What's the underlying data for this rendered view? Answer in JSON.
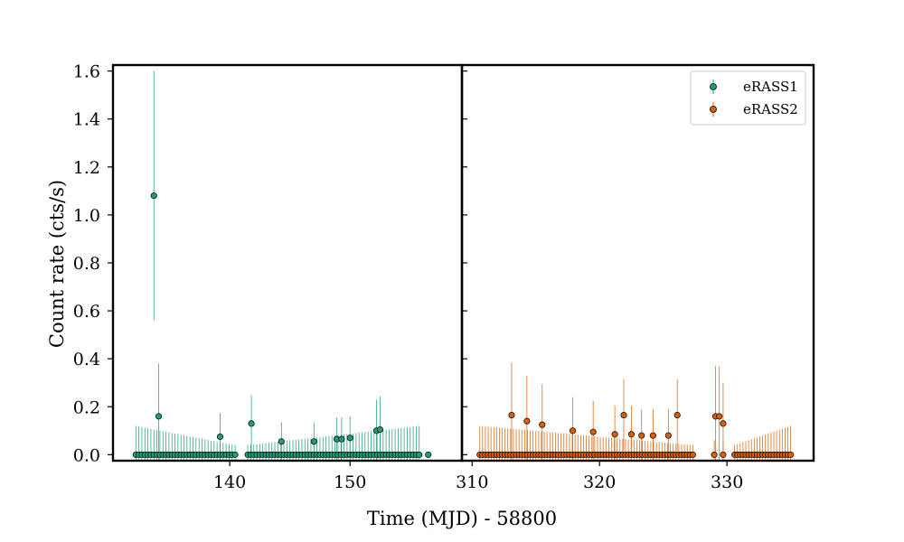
{
  "chart_data": {
    "type": "scatter",
    "xlabel": "Time (MJD) - 58800",
    "ylabel": "Count rate (cts/s)",
    "ylim": [
      -0.025,
      1.625
    ],
    "yticks": [
      0.0,
      0.2,
      0.4,
      0.6,
      0.8,
      1.0,
      1.2,
      1.4,
      1.6
    ],
    "ytick_labels": [
      "0.0",
      "0.2",
      "0.4",
      "0.6",
      "0.8",
      "1.0",
      "1.2",
      "1.4",
      "1.6"
    ],
    "panels": [
      {
        "xlim": [
          130.3,
          159.3
        ],
        "xticks": [
          140,
          150
        ],
        "xtick_labels": [
          "140",
          "150"
        ],
        "series_ref": 0
      },
      {
        "xlim": [
          309.2,
          336.8
        ],
        "xticks": [
          310,
          320,
          330
        ],
        "xtick_labels": [
          "310",
          "320",
          "330"
        ],
        "series_ref": 1
      }
    ],
    "legend": {
      "placement": "top-right"
    },
    "series": [
      {
        "name": "eRASS1",
        "color": "#1b9e77",
        "points": [
          {
            "x": 133.7,
            "y": 1.08,
            "err": 0.52
          },
          {
            "x": 134.1,
            "y": 0.16,
            "err": 0.22
          },
          {
            "x": 139.2,
            "y": 0.075,
            "err": 0.1
          },
          {
            "x": 141.8,
            "y": 0.13,
            "err": 0.12
          },
          {
            "x": 144.3,
            "y": 0.055,
            "err": 0.08
          },
          {
            "x": 147.0,
            "y": 0.055,
            "err": 0.08
          },
          {
            "x": 148.9,
            "y": 0.065,
            "err": 0.09
          },
          {
            "x": 149.3,
            "y": 0.065,
            "err": 0.09
          },
          {
            "x": 150.0,
            "y": 0.07,
            "err": 0.09
          },
          {
            "x": 152.2,
            "y": 0.1,
            "err": 0.13
          },
          {
            "x": 152.5,
            "y": 0.105,
            "err": 0.14
          },
          {
            "x": 156.5,
            "y": 0.0,
            "err": 0.0
          }
        ],
        "zero_runs": [
          {
            "start": 132.2,
            "end": 140.4,
            "step": 0.25,
            "err_start": 0.12,
            "err_end": 0.04
          },
          {
            "start": 141.5,
            "end": 155.8,
            "step": 0.25,
            "err_start": 0.04,
            "err_end": 0.12
          }
        ]
      },
      {
        "name": "eRASS2",
        "color": "#d95f02",
        "points": [
          {
            "x": 313.1,
            "y": 0.165,
            "err": 0.22
          },
          {
            "x": 314.3,
            "y": 0.14,
            "err": 0.19
          },
          {
            "x": 315.5,
            "y": 0.125,
            "err": 0.17
          },
          {
            "x": 317.9,
            "y": 0.1,
            "err": 0.14
          },
          {
            "x": 319.5,
            "y": 0.095,
            "err": 0.13
          },
          {
            "x": 321.2,
            "y": 0.085,
            "err": 0.12
          },
          {
            "x": 321.9,
            "y": 0.165,
            "err": 0.15
          },
          {
            "x": 322.5,
            "y": 0.085,
            "err": 0.12
          },
          {
            "x": 323.3,
            "y": 0.08,
            "err": 0.11
          },
          {
            "x": 324.2,
            "y": 0.08,
            "err": 0.11
          },
          {
            "x": 325.4,
            "y": 0.08,
            "err": 0.11
          },
          {
            "x": 326.1,
            "y": 0.165,
            "err": 0.15
          },
          {
            "x": 329.1,
            "y": 0.16,
            "err": 0.21
          },
          {
            "x": 329.4,
            "y": 0.16,
            "err": 0.21
          },
          {
            "x": 329.7,
            "y": 0.13,
            "err": 0.17
          }
        ],
        "zero_runs": [
          {
            "start": 310.6,
            "end": 327.4,
            "step": 0.22,
            "err_start": 0.12,
            "err_end": 0.04
          },
          {
            "start": 330.6,
            "end": 335.0,
            "step": 0.22,
            "err_start": 0.04,
            "err_end": 0.12
          }
        ],
        "extra_zero_points": [
          {
            "x": 329.0,
            "y": 0.0,
            "err": 0.06
          },
          {
            "x": 329.7,
            "y": 0.0,
            "err": 0.06
          }
        ]
      }
    ]
  }
}
